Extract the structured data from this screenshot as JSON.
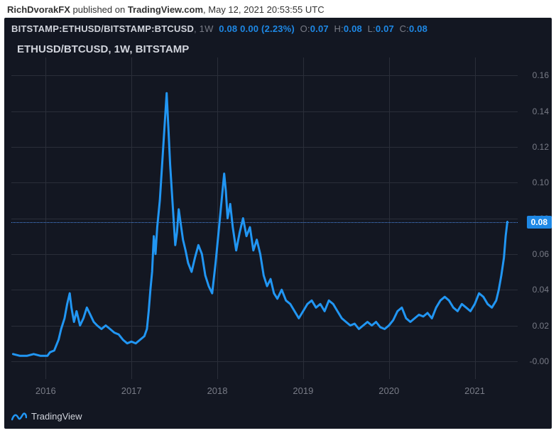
{
  "publish": {
    "author": "RichDvorakFX",
    "mid": " published on ",
    "site": "TradingView.com",
    "sep": ", ",
    "date": "May 12, 2021 20:53:55 UTC"
  },
  "info": {
    "symbol": "BITSTAMP:ETHUSD/BITSTAMP:BTCUSD",
    "interval": ", 1W",
    "last": "0.08",
    "chg": "0.00",
    "pct": "(2.23%)",
    "o_lbl": "O:",
    "o_val": "0.07",
    "h_lbl": "H:",
    "h_val": "0.08",
    "l_lbl": "L:",
    "l_val": "0.07",
    "c_lbl": "C:",
    "c_val": "0.08"
  },
  "title": "ETHUSD/BTCUSD, 1W, BITSTAMP",
  "yaxis": {
    "min": -0.01,
    "max": 0.17,
    "ticks": [
      {
        "v": -0.0,
        "label": "-0.00"
      },
      {
        "v": 0.02,
        "label": "0.02"
      },
      {
        "v": 0.04,
        "label": "0.04"
      },
      {
        "v": 0.06,
        "label": "0.06"
      },
      {
        "v": 0.08,
        "label": "0.08"
      },
      {
        "v": 0.1,
        "label": "0.10"
      },
      {
        "v": 0.12,
        "label": "0.12"
      },
      {
        "v": 0.14,
        "label": "0.14"
      },
      {
        "v": 0.16,
        "label": "0.16"
      }
    ],
    "dash_at": 0.078
  },
  "xaxis": {
    "min": 2015.6,
    "max": 2021.5,
    "ticks": [
      {
        "v": 2016,
        "label": "2016"
      },
      {
        "v": 2017,
        "label": "2017"
      },
      {
        "v": 2018,
        "label": "2018"
      },
      {
        "v": 2019,
        "label": "2019"
      },
      {
        "v": 2020,
        "label": "2020"
      },
      {
        "v": 2021,
        "label": "2021"
      }
    ]
  },
  "badge": "0.08",
  "footer_brand": "TradingView",
  "style": {
    "bg": "#131722",
    "grid": "#2a2e39",
    "line_color": "#2196f3",
    "line_width": 3,
    "badge_bg": "#1e88e5",
    "ylabel_color": "#787b86",
    "dash_color": "#4c8bea"
  },
  "series": [
    [
      2015.62,
      0.004
    ],
    [
      2015.7,
      0.003
    ],
    [
      2015.78,
      0.003
    ],
    [
      2015.86,
      0.004
    ],
    [
      2015.94,
      0.003
    ],
    [
      2016.02,
      0.003
    ],
    [
      2016.05,
      0.005
    ],
    [
      2016.1,
      0.006
    ],
    [
      2016.15,
      0.012
    ],
    [
      2016.18,
      0.018
    ],
    [
      2016.22,
      0.024
    ],
    [
      2016.25,
      0.032
    ],
    [
      2016.28,
      0.038
    ],
    [
      2016.3,
      0.03
    ],
    [
      2016.33,
      0.022
    ],
    [
      2016.36,
      0.028
    ],
    [
      2016.4,
      0.02
    ],
    [
      2016.44,
      0.024
    ],
    [
      2016.48,
      0.03
    ],
    [
      2016.52,
      0.026
    ],
    [
      2016.56,
      0.022
    ],
    [
      2016.6,
      0.02
    ],
    [
      2016.65,
      0.018
    ],
    [
      2016.7,
      0.02
    ],
    [
      2016.75,
      0.018
    ],
    [
      2016.8,
      0.016
    ],
    [
      2016.85,
      0.015
    ],
    [
      2016.9,
      0.012
    ],
    [
      2016.95,
      0.01
    ],
    [
      2017.0,
      0.011
    ],
    [
      2017.05,
      0.01
    ],
    [
      2017.1,
      0.012
    ],
    [
      2017.15,
      0.014
    ],
    [
      2017.18,
      0.018
    ],
    [
      2017.2,
      0.028
    ],
    [
      2017.22,
      0.04
    ],
    [
      2017.24,
      0.05
    ],
    [
      2017.26,
      0.07
    ],
    [
      2017.28,
      0.06
    ],
    [
      2017.3,
      0.075
    ],
    [
      2017.33,
      0.09
    ],
    [
      2017.35,
      0.105
    ],
    [
      2017.37,
      0.12
    ],
    [
      2017.39,
      0.135
    ],
    [
      2017.41,
      0.15
    ],
    [
      2017.43,
      0.13
    ],
    [
      2017.45,
      0.11
    ],
    [
      2017.47,
      0.095
    ],
    [
      2017.49,
      0.08
    ],
    [
      2017.51,
      0.065
    ],
    [
      2017.53,
      0.072
    ],
    [
      2017.55,
      0.085
    ],
    [
      2017.57,
      0.078
    ],
    [
      2017.6,
      0.068
    ],
    [
      2017.63,
      0.062
    ],
    [
      2017.66,
      0.055
    ],
    [
      2017.7,
      0.05
    ],
    [
      2017.74,
      0.058
    ],
    [
      2017.78,
      0.065
    ],
    [
      2017.82,
      0.06
    ],
    [
      2017.86,
      0.048
    ],
    [
      2017.9,
      0.042
    ],
    [
      2017.94,
      0.038
    ],
    [
      2017.98,
      0.055
    ],
    [
      2018.02,
      0.075
    ],
    [
      2018.05,
      0.09
    ],
    [
      2018.08,
      0.105
    ],
    [
      2018.1,
      0.095
    ],
    [
      2018.12,
      0.08
    ],
    [
      2018.15,
      0.088
    ],
    [
      2018.18,
      0.075
    ],
    [
      2018.22,
      0.062
    ],
    [
      2018.26,
      0.072
    ],
    [
      2018.3,
      0.08
    ],
    [
      2018.34,
      0.07
    ],
    [
      2018.38,
      0.075
    ],
    [
      2018.42,
      0.062
    ],
    [
      2018.46,
      0.068
    ],
    [
      2018.5,
      0.06
    ],
    [
      2018.54,
      0.048
    ],
    [
      2018.58,
      0.042
    ],
    [
      2018.62,
      0.046
    ],
    [
      2018.66,
      0.038
    ],
    [
      2018.7,
      0.035
    ],
    [
      2018.75,
      0.04
    ],
    [
      2018.8,
      0.034
    ],
    [
      2018.85,
      0.032
    ],
    [
      2018.9,
      0.028
    ],
    [
      2018.95,
      0.024
    ],
    [
      2019.0,
      0.028
    ],
    [
      2019.05,
      0.032
    ],
    [
      2019.1,
      0.034
    ],
    [
      2019.15,
      0.03
    ],
    [
      2019.2,
      0.032
    ],
    [
      2019.25,
      0.028
    ],
    [
      2019.3,
      0.034
    ],
    [
      2019.35,
      0.032
    ],
    [
      2019.4,
      0.028
    ],
    [
      2019.45,
      0.024
    ],
    [
      2019.5,
      0.022
    ],
    [
      2019.55,
      0.02
    ],
    [
      2019.6,
      0.021
    ],
    [
      2019.65,
      0.018
    ],
    [
      2019.7,
      0.02
    ],
    [
      2019.75,
      0.022
    ],
    [
      2019.8,
      0.02
    ],
    [
      2019.85,
      0.022
    ],
    [
      2019.9,
      0.019
    ],
    [
      2019.95,
      0.018
    ],
    [
      2020.0,
      0.02
    ],
    [
      2020.05,
      0.023
    ],
    [
      2020.1,
      0.028
    ],
    [
      2020.15,
      0.03
    ],
    [
      2020.2,
      0.024
    ],
    [
      2020.25,
      0.022
    ],
    [
      2020.3,
      0.024
    ],
    [
      2020.35,
      0.026
    ],
    [
      2020.4,
      0.025
    ],
    [
      2020.45,
      0.027
    ],
    [
      2020.5,
      0.024
    ],
    [
      2020.55,
      0.03
    ],
    [
      2020.6,
      0.034
    ],
    [
      2020.65,
      0.036
    ],
    [
      2020.7,
      0.034
    ],
    [
      2020.75,
      0.03
    ],
    [
      2020.8,
      0.028
    ],
    [
      2020.85,
      0.032
    ],
    [
      2020.9,
      0.03
    ],
    [
      2020.95,
      0.028
    ],
    [
      2021.0,
      0.032
    ],
    [
      2021.05,
      0.038
    ],
    [
      2021.1,
      0.036
    ],
    [
      2021.15,
      0.032
    ],
    [
      2021.2,
      0.03
    ],
    [
      2021.25,
      0.034
    ],
    [
      2021.28,
      0.04
    ],
    [
      2021.31,
      0.048
    ],
    [
      2021.34,
      0.058
    ],
    [
      2021.36,
      0.07
    ],
    [
      2021.38,
      0.078
    ]
  ]
}
